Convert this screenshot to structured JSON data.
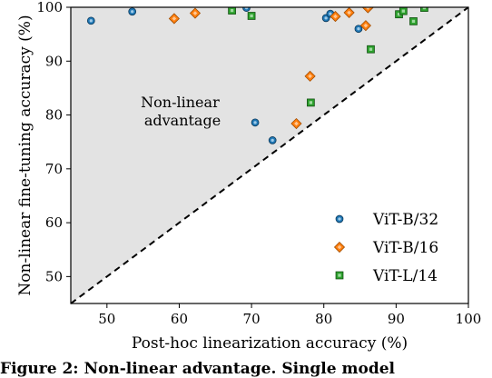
{
  "chart_data": {
    "type": "scatter",
    "xlabel": "Post-hoc linearization accuracy (%)",
    "ylabel": "Non-linear fine-tuning accuracy (%)",
    "xlim": [
      45,
      100
    ],
    "ylim": [
      45,
      100
    ],
    "xticks": [
      50,
      60,
      70,
      80,
      90,
      100
    ],
    "yticks": [
      50,
      60,
      70,
      80,
      90,
      100
    ],
    "grid": false,
    "legend_position": "bottom-right",
    "reference_line": "y = x (dashed)",
    "shaded_region": "above diagonal",
    "annotation": [
      "Non-linear",
      "advantage"
    ],
    "series": [
      {
        "name": "ViT-B/32",
        "marker": "circle",
        "color": "#1f77b4",
        "points": [
          [
            47.8,
            97.5
          ],
          [
            53.5,
            99.2
          ],
          [
            69.3,
            99.9
          ],
          [
            80.3,
            98.0
          ],
          [
            80.9,
            98.8
          ],
          [
            84.8,
            96.0
          ],
          [
            70.5,
            78.6
          ],
          [
            72.9,
            75.3
          ]
        ]
      },
      {
        "name": "ViT-B/16",
        "marker": "diamond",
        "color": "#ff7f0e",
        "points": [
          [
            59.3,
            97.9
          ],
          [
            62.2,
            98.9
          ],
          [
            81.6,
            98.3
          ],
          [
            83.5,
            99.0
          ],
          [
            86.1,
            99.9
          ],
          [
            85.8,
            96.6
          ],
          [
            78.1,
            87.2
          ],
          [
            76.2,
            78.4
          ]
        ]
      },
      {
        "name": "ViT-L/14",
        "marker": "square",
        "color": "#2ca02c",
        "points": [
          [
            67.3,
            99.4
          ],
          [
            70.0,
            98.4
          ],
          [
            90.4,
            98.7
          ],
          [
            91.0,
            99.3
          ],
          [
            92.4,
            97.4
          ],
          [
            93.9,
            99.9
          ],
          [
            86.5,
            92.2
          ],
          [
            78.2,
            82.3
          ]
        ]
      }
    ]
  },
  "caption": "Figure 2: Non-linear advantage. Single model"
}
